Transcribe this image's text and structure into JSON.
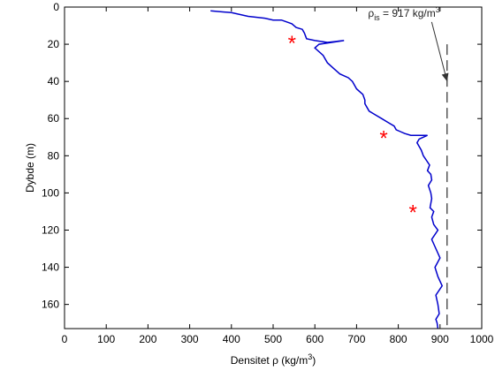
{
  "chart_data": {
    "type": "line",
    "xlabel": "Densitet ρ (kg/m",
    "xlabel_sup": "3",
    "xlabel_end": ")",
    "ylabel": "Dybde (m)",
    "xlim": [
      0,
      1000
    ],
    "ylim": [
      0,
      173
    ],
    "y_reversed": true,
    "grid": false,
    "xticks": [
      "0",
      "100",
      "200",
      "300",
      "400",
      "500",
      "600",
      "700",
      "800",
      "900",
      "1000"
    ],
    "yticks": [
      "0",
      "20",
      "40",
      "60",
      "80",
      "100",
      "120",
      "140",
      "160"
    ],
    "xtick_values": [
      0,
      100,
      200,
      300,
      400,
      500,
      600,
      700,
      800,
      900,
      1000
    ],
    "ytick_values": [
      0,
      20,
      40,
      60,
      80,
      100,
      120,
      140,
      160
    ],
    "line_color": "#0000cc",
    "marker_color": "#ff0000",
    "reference_color": "#000000",
    "series": [
      {
        "x": [
          350,
          400,
          440,
          480,
          500,
          520,
          545,
          555,
          570,
          575,
          580,
          600,
          630,
          670,
          610,
          600,
          620,
          630,
          645,
          660,
          680,
          690,
          700,
          715,
          720,
          720,
          730,
          745,
          760,
          775,
          790,
          795,
          805,
          815,
          830,
          850,
          870,
          850,
          845,
          855,
          860,
          875,
          870,
          878,
          880,
          872,
          878,
          880,
          876,
          885,
          880,
          885,
          895,
          880,
          890,
          900,
          888,
          895,
          905,
          890,
          895,
          898,
          890,
          893,
          895
        ],
        "y": [
          2,
          3,
          5,
          6,
          7,
          7,
          9,
          11,
          12,
          14,
          17,
          18,
          19,
          18,
          20,
          22,
          26,
          30,
          33,
          36,
          38,
          40,
          44,
          47,
          50,
          52,
          56,
          58,
          60,
          62,
          64,
          66,
          67,
          68,
          69,
          69,
          69,
          71,
          73,
          77,
          80,
          85,
          88,
          90,
          93,
          96,
          100,
          103,
          108,
          110,
          113,
          117,
          120,
          125,
          130,
          135,
          140,
          145,
          150,
          155,
          160,
          165,
          168,
          170,
          173
        ]
      }
    ],
    "markers": {
      "symbol": "*",
      "x": [
        545,
        765,
        835
      ],
      "y": [
        19,
        70,
        110
      ]
    },
    "reference_line": {
      "x": 917,
      "y_from": 20,
      "y_to": 173,
      "style": "dashed",
      "label_main": "ρ",
      "label_sub": "is",
      "label_rest": " = 917 kg/m",
      "label_sup": "3",
      "arrow_from": [
        880,
        8
      ],
      "arrow_to": [
        917,
        40
      ]
    }
  }
}
